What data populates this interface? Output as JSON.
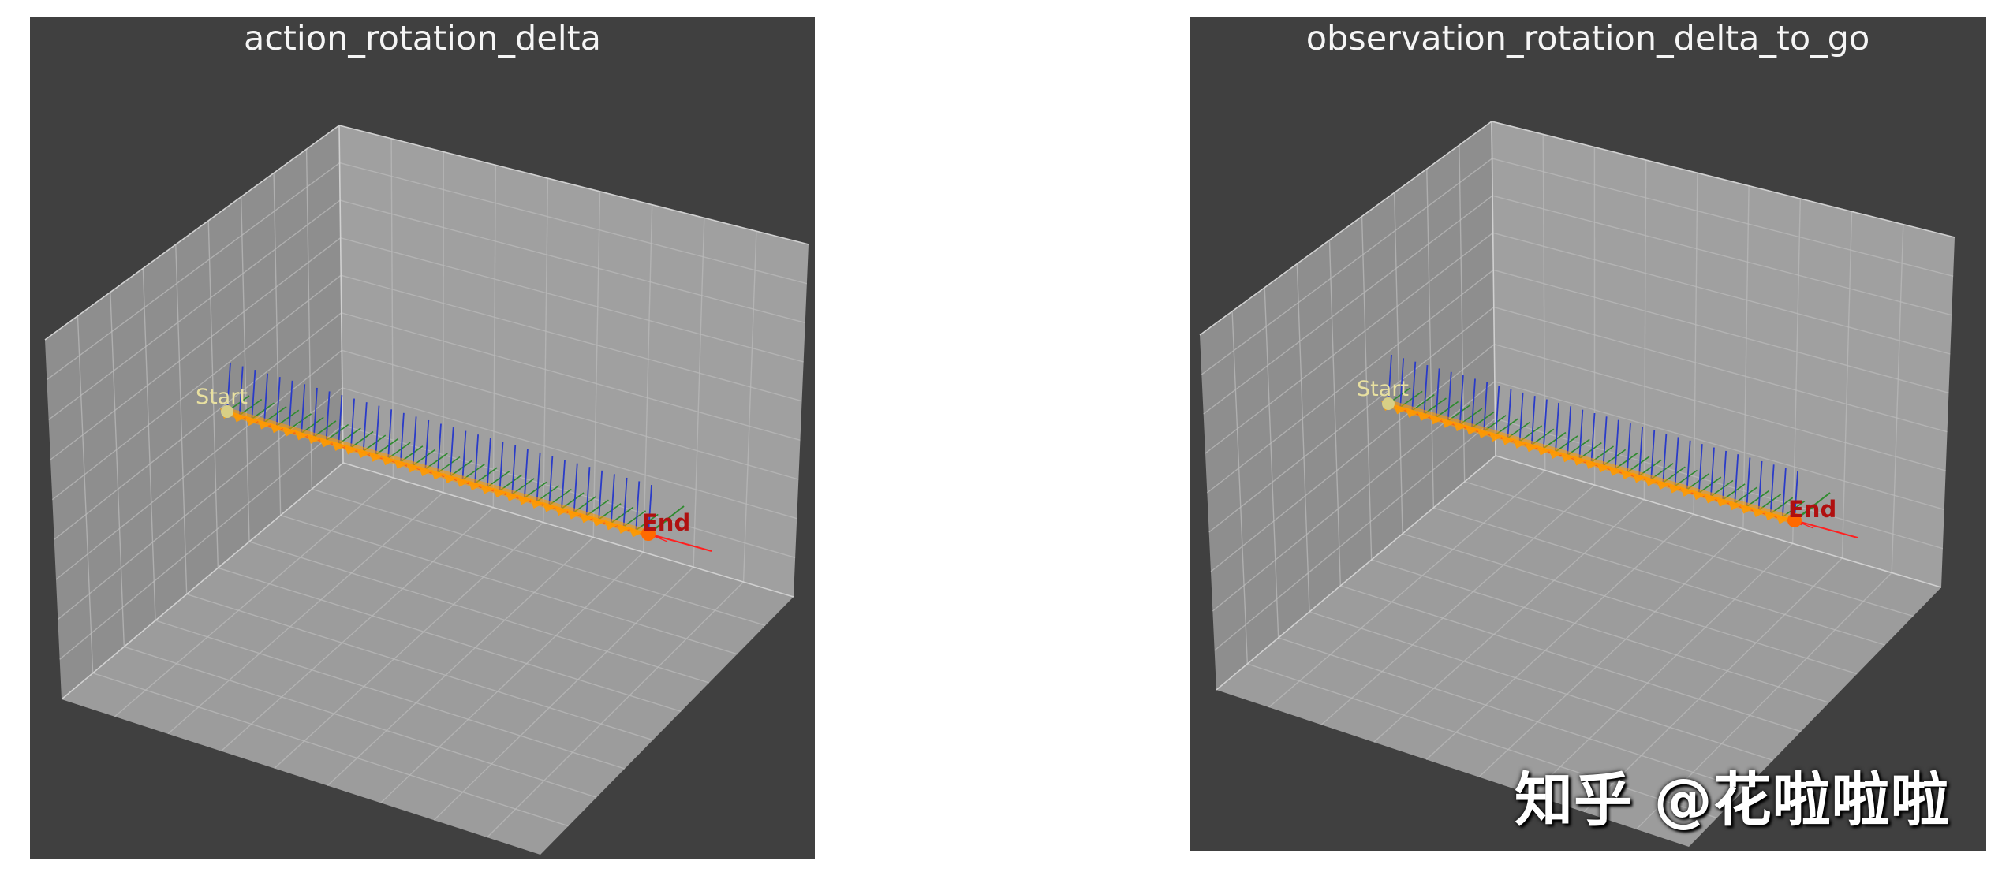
{
  "colors": {
    "figure_background": "#ffffff",
    "axes_background": "#404040",
    "pane_face": "#9a9a9a",
    "grid": "#b9b9b9",
    "title_text": "#f5f5f5",
    "x_axis_color": "#ff2020",
    "y_axis_color": "#2e8b2e",
    "z_axis_color": "#2a3bc8",
    "trajectory_marker": "#ff9a00",
    "start_label": "#e8e0a0",
    "end_label": "#b01010"
  },
  "watermark": "知乎 @花啦啦啦",
  "chart_data": [
    {
      "type": "line",
      "title": "action_rotation_delta",
      "projection": "3d",
      "grid": true,
      "axes_ticks_visible": false,
      "start_label": "Start",
      "end_label": "End",
      "num_frames": 35,
      "frame_axes": [
        "x",
        "y",
        "z"
      ],
      "trajectory": "straight line from start to end, each point drawn with an orientation triad (x red, y green, z blue) and an orange marker"
    },
    {
      "type": "line",
      "title": "observation_rotation_delta_to_go",
      "projection": "3d",
      "grid": true,
      "axes_ticks_visible": false,
      "start_label": "Start",
      "end_label": "End",
      "num_frames": 35,
      "frame_axes": [
        "x",
        "y",
        "z"
      ],
      "trajectory": "straight line from start to end, each point drawn with an orientation triad (x red, y green, z blue) and an orange marker"
    }
  ]
}
